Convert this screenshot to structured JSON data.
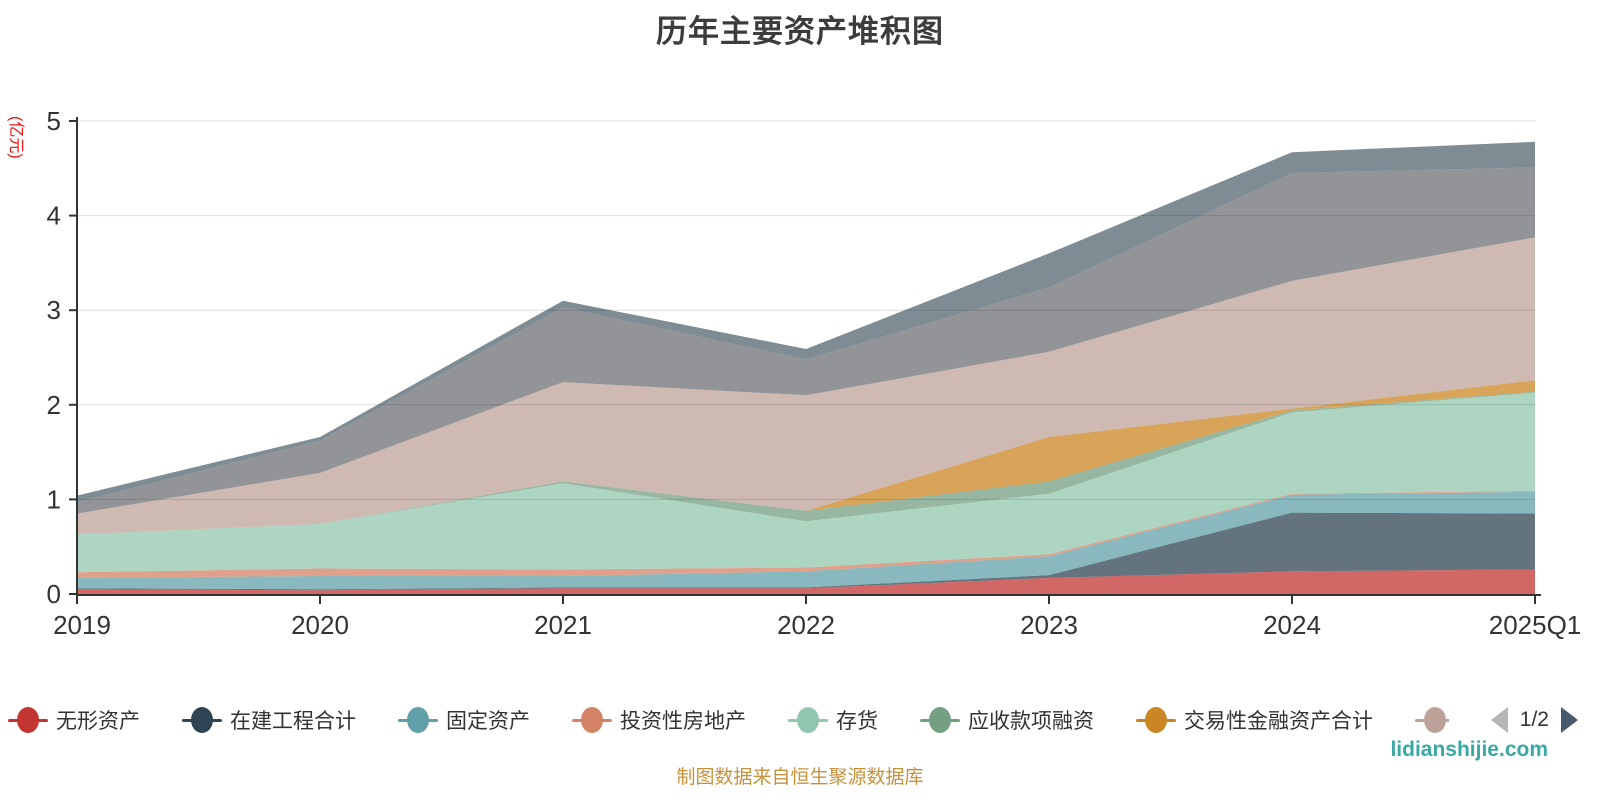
{
  "title": "历年主要资产堆积图",
  "y_axis_unit": "(亿元)",
  "caption": "制图数据来自恒生聚源数据库",
  "watermark": "lidianshijie.com",
  "legend": {
    "items": [
      {
        "label": "无形资产",
        "color": "#c23531",
        "decal": false,
        "clipped": false
      },
      {
        "label": "在建工程合计",
        "color": "#2f4554",
        "decal": false,
        "clipped": false
      },
      {
        "label": "固定资产",
        "color": "#61a0a8",
        "decal": false,
        "clipped": false
      },
      {
        "label": "投资性房地产",
        "color": "#d48265",
        "decal": true,
        "clipped": false
      },
      {
        "label": "存货",
        "color": "#91c7ae",
        "decal": true,
        "clipped": false
      },
      {
        "label": "应收款项融资",
        "color": "#749f83",
        "decal": false,
        "clipped": false
      },
      {
        "label": "交易性金融资产合计",
        "color": "#ca8622",
        "decal": false,
        "clipped": false
      },
      {
        "label": "",
        "color": "#bda29a",
        "decal": true,
        "clipped": true
      }
    ],
    "pagination": {
      "current": "1/2",
      "prev_enabled": false,
      "next_enabled": true
    }
  },
  "chart_data": {
    "type": "area",
    "stacked": true,
    "title": "历年主要资产堆积图",
    "ylabel": "(亿元)",
    "ylim": [
      0,
      5
    ],
    "y_ticks": [
      "0",
      "1",
      "2",
      "3",
      "4",
      "5"
    ],
    "x": [
      "2019",
      "2020",
      "2021",
      "2022",
      "2023",
      "2024",
      "2025Q1"
    ],
    "grid": true,
    "legend_position": "bottom",
    "fill_opacity": 0.75,
    "series": [
      {
        "name": "无形资产",
        "color": "#c23531",
        "values": [
          0.05,
          0.04,
          0.06,
          0.06,
          0.17,
          0.24,
          0.26
        ]
      },
      {
        "name": "在建工程合计",
        "color": "#2f4554",
        "values": [
          0.01,
          0.01,
          0.01,
          0.01,
          0.03,
          0.62,
          0.59
        ]
      },
      {
        "name": "固定资产",
        "color": "#61a0a8",
        "values": [
          0.11,
          0.14,
          0.12,
          0.17,
          0.2,
          0.19,
          0.23
        ]
      },
      {
        "name": "投资性房地产",
        "color": "#d48265",
        "values": [
          0.06,
          0.08,
          0.07,
          0.04,
          0.02,
          0.01,
          0.01
        ]
      },
      {
        "name": "存货",
        "color": "#91c7ae",
        "values": [
          0.4,
          0.47,
          0.91,
          0.49,
          0.64,
          0.86,
          1.04
        ]
      },
      {
        "name": "应收款项融资",
        "color": "#749f83",
        "values": [
          0.0,
          0.0,
          0.02,
          0.11,
          0.13,
          0.02,
          0.01
        ]
      },
      {
        "name": "交易性金融资产合计",
        "color": "#ca8622",
        "values": [
          0.0,
          0.0,
          0.0,
          0.0,
          0.47,
          0.02,
          0.12
        ]
      },
      {
        "name": "",
        "color": "#bda29a",
        "values": [
          0.22,
          0.54,
          1.05,
          1.22,
          0.9,
          1.35,
          1.51
        ]
      },
      {
        "name": "",
        "color": "#6e7074",
        "values": [
          0.12,
          0.34,
          0.79,
          0.38,
          0.68,
          1.14,
          0.74
        ]
      },
      {
        "name": "",
        "color": "#546570",
        "values": [
          0.07,
          0.04,
          0.07,
          0.11,
          0.36,
          0.22,
          0.27
        ]
      }
    ]
  }
}
